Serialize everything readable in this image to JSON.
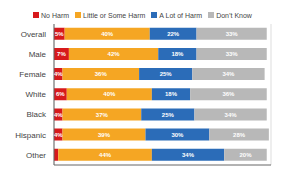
{
  "chart_data": {
    "type": "bar",
    "orientation": "horizontal",
    "stacked": true,
    "categories": [
      "Overall",
      "Male",
      "Female",
      "White",
      "Black",
      "Hispanic",
      "Other"
    ],
    "series": [
      {
        "name": "No Harm",
        "color": "#d7191c",
        "values": [
          5,
          7,
          4,
          6,
          4,
          4,
          2
        ],
        "value_labels": [
          "5%",
          "7%",
          "4%",
          "6%",
          "4%",
          "4%",
          null
        ]
      },
      {
        "name": "Little or Some Harm",
        "color": "#f5a623",
        "values": [
          40,
          42,
          36,
          40,
          37,
          39,
          44
        ],
        "value_labels": [
          "40%",
          "42%",
          "36%",
          "40%",
          "37%",
          "39%",
          "44%"
        ]
      },
      {
        "name": "A Lot of Harm",
        "color": "#2b6cb8",
        "values": [
          22,
          18,
          25,
          18,
          25,
          30,
          34
        ],
        "value_labels": [
          "22%",
          "18%",
          "25%",
          "18%",
          "25%",
          "30%",
          "34%"
        ]
      },
      {
        "name": "Don’t Know",
        "color": "#b8b8b8",
        "values": [
          33,
          33,
          34,
          36,
          34,
          28,
          20
        ],
        "value_labels": [
          "33%",
          "33%",
          "34%",
          "36%",
          "34%",
          "28%",
          "20%"
        ]
      }
    ],
    "xlim": [
      0,
      102
    ],
    "xticks": [
      25,
      50,
      75,
      100
    ],
    "grid": true,
    "legend": "top",
    "data_labels": true,
    "tick_labels": "y"
  }
}
